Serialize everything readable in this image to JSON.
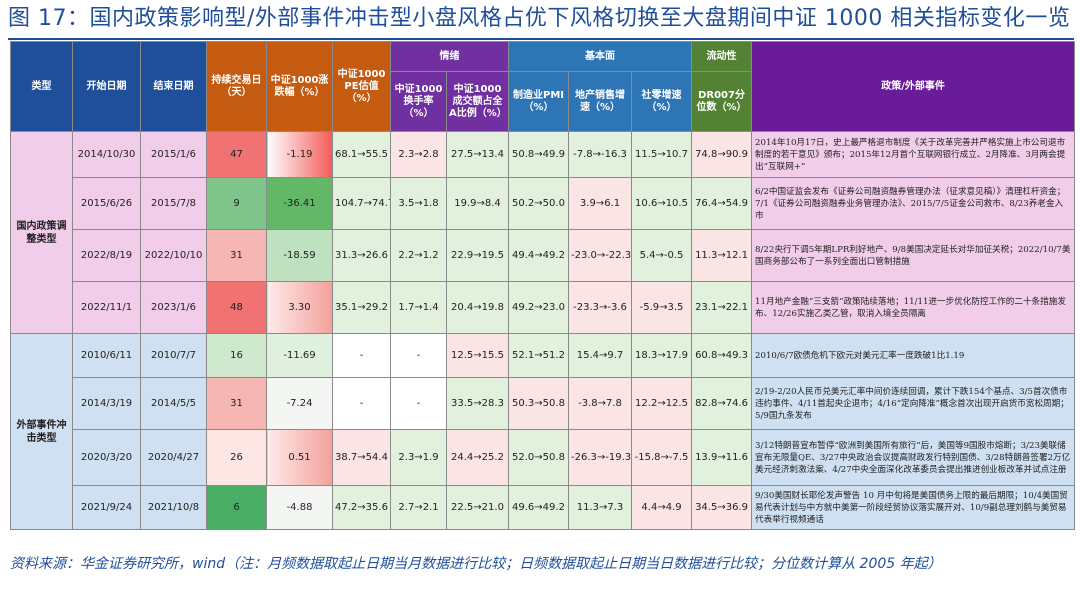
{
  "title": "图 17：国内政策影响型/外部事件冲击型小盘风格占优下风格切换至大盘期间中证 1000 相关指标变化一览",
  "headers": {
    "type": "类型",
    "start": "开始日期",
    "end": "结束日期",
    "duration": "持续交易日（天）",
    "change": "中证1000涨跌幅（%）",
    "pe": "中证1000 PE估值（%）",
    "sentiment": "情绪",
    "turnover": "中证1000换手率（%）",
    "share": "中证1000成交额占全A比例（%）",
    "fundamentals": "基本面",
    "pmi": "制造业PMI（%）",
    "realestate": "地产销售增速（%）",
    "retail": "社零增速（%）",
    "liquidity": "流动性",
    "dr007": "DR007分位数（%）",
    "events": "政策/外部事件"
  },
  "groups": [
    {
      "label": "国内政策调整类型",
      "rows": [
        {
          "start": "2014/10/30",
          "end": "2015/1/6",
          "duration": "47",
          "change": "-1.19",
          "pe": "68.1→55.5",
          "turnover": "2.3→2.8",
          "share": "27.5→13.4",
          "pmi": "50.8→49.9",
          "realestate": "-7.8→-16.3",
          "retail": "11.5→10.7",
          "dr007": "74.8→90.9",
          "event": "2014年10月17日，史上最严格退市制度《关于改革完善并严格实施上市公司退市制度的若干意见》颁布；2015年12月首个互联网银行成立、2月降准、3月两会提出“互联网+”"
        },
        {
          "start": "2015/6/26",
          "end": "2015/7/8",
          "duration": "9",
          "change": "-36.41",
          "pe": "104.7→74.7",
          "turnover": "3.5→1.8",
          "share": "19.9→8.4",
          "pmi": "50.2→50.0",
          "realestate": "3.9→6.1",
          "retail": "10.6→10.5",
          "dr007": "76.4→54.9",
          "event": "6/2中国证监会发布《证券公司融资融券管理办法（征求意见稿）》清理杠杆资金；7/1《证券公司融资融券业务管理办法》、2015/7/5证金公司救市、8/23养老金入市"
        },
        {
          "start": "2022/8/19",
          "end": "2022/10/10",
          "duration": "31",
          "change": "-18.59",
          "pe": "31.3→26.6",
          "turnover": "2.2→1.2",
          "share": "22.9→19.5",
          "pmi": "49.4→49.2",
          "realestate": "-23.0→-22.3",
          "retail": "5.4→-0.5",
          "dr007": "11.3→12.1",
          "event": "8/22央行下调5年期LPR利好地产、9/8美国决定延长对华加征关税；2022/10/7美国商务部公布了一系列全面出口管制措施"
        },
        {
          "start": "2022/11/1",
          "end": "2023/1/6",
          "duration": "48",
          "change": "3.30",
          "pe": "35.1→29.2",
          "turnover": "1.7→1.4",
          "share": "20.4→19.8",
          "pmi": "49.2→23.0",
          "realestate": "-23.3→-3.6",
          "retail": "-5.9→3.5",
          "dr007": "23.1→22.1",
          "event": "11月地产金融“三支箭”政策陆续落地；11/11进一步优化防控工作的二十条措施发布、12/26实施乙类乙管，取消入境全员隔离"
        }
      ]
    },
    {
      "label": "外部事件冲击类型",
      "rows": [
        {
          "start": "2010/6/11",
          "end": "2010/7/7",
          "duration": "16",
          "change": "-11.69",
          "pe": "-",
          "turnover": "-",
          "share": "12.5→15.5",
          "pmi": "52.1→51.2",
          "realestate": "15.4→9.7",
          "retail": "18.3→17.9",
          "dr007": "60.8→49.3",
          "event": "2010/6/7欧债危机下欧元对美元汇率一度跌破1比1.19"
        },
        {
          "start": "2014/3/19",
          "end": "2014/5/5",
          "duration": "31",
          "change": "-7.24",
          "pe": "-",
          "turnover": "-",
          "share": "33.5→28.3",
          "pmi": "50.3→50.8",
          "realestate": "-3.8→7.8",
          "retail": "12.2→12.5",
          "dr007": "82.8→74.6",
          "event": "2/19-2/20人民币兑美元汇率中间价连续回调，累计下跌154个基点、3/5首次债市违约事件、4/11首起央企退市；4/16“定向降准”概念首次出现开启货币宽松周期；5/9国九条发布"
        },
        {
          "start": "2020/3/20",
          "end": "2020/4/27",
          "duration": "26",
          "change": "0.51",
          "pe": "38.7→54.4",
          "turnover": "2.3→1.9",
          "share": "24.4→25.2",
          "pmi": "52.0→50.8",
          "realestate": "-26.3→-19.3",
          "retail": "-15.8→-7.5",
          "dr007": "13.9→11.6",
          "event": "3/12特朗普宣布暂停“欧洲到美国所有旅行”后，美国等9国股市熔断；3/23美联储宣布无限量QE、3/27中央政治会议提高财政发行特别国债、3/28特朗普签署2万亿美元经济刺激法案、4/27中央全面深化改革委员会提出推进创业板改革并试点注册"
        },
        {
          "start": "2021/9/24",
          "end": "2021/10/8",
          "duration": "6",
          "change": "-4.88",
          "pe": "47.2→35.6",
          "turnover": "2.7→2.1",
          "share": "22.5→21.0",
          "pmi": "49.6→49.2",
          "realestate": "11.3→7.3",
          "retail": "4.4→4.9",
          "dr007": "34.5→36.9",
          "event": "9/30美国财长耶伦发声警告 10 月中旬将是美国债务上限的最后期限；10/4美国贸易代表计划与中方就中美第一阶段经贸协议落实展开对、10/9副总理刘鹤与美贸易代表举行视频通话"
        }
      ]
    }
  ],
  "footer": "资料来源：华金证券研究所，wind（注：月频数据取起止日期当月数据进行比较；日频数据取起止日期当日数据进行比较；分位数计算从 2005 年起）",
  "colors": {
    "header_blue": "#1f4e9a",
    "header_orange": "#c55a11",
    "header_purple": "#7030a0",
    "header_green": "#548235",
    "group1_bg": "#f2cdea",
    "group2_bg": "#cfe0f2"
  }
}
